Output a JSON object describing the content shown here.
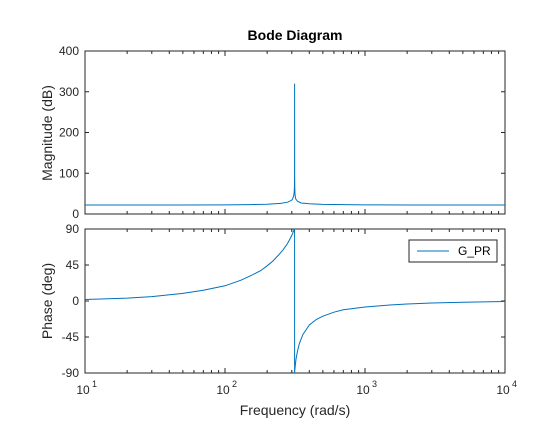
{
  "chart_data": {
    "type": "line",
    "title": "Bode Diagram",
    "xlabel": "Frequency  (rad/s)",
    "xscale": "log",
    "xlim": [
      10,
      10000
    ],
    "x_tick_labels": [
      {
        "value": 10,
        "base": "10",
        "exp": "1"
      },
      {
        "value": 100,
        "base": "10",
        "exp": "2"
      },
      {
        "value": 1000,
        "base": "10",
        "exp": "3"
      },
      {
        "value": 10000,
        "base": "10",
        "exp": "4"
      }
    ],
    "grid": false,
    "series_color": "#0072BD",
    "subplots": [
      {
        "id": "magnitude",
        "ylabel": "Magnitude (dB)",
        "ylim": [
          0,
          400
        ],
        "yticks": [
          0,
          100,
          200,
          300,
          400
        ],
        "series": [
          {
            "x": [
              10,
              20,
              50,
              100,
              150,
              200,
              250,
              280,
              300,
              305,
              310,
              312,
              313,
              313.5,
              314,
              314.2,
              314.5,
              315,
              316,
              318,
              320,
              330,
              350,
              400,
              500,
              1000,
              2000,
              5000,
              10000
            ],
            "values": [
              22,
              22,
              22,
              22.5,
              23,
              24,
              26,
              29,
              34,
              38,
              46,
              54,
              62,
              70,
              95,
              320,
              90,
              66,
              50,
              42,
              37,
              31,
              27,
              25,
              23.5,
              22.5,
              22,
              22,
              22
            ]
          }
        ]
      },
      {
        "id": "phase",
        "ylabel": "Phase (deg)",
        "ylim": [
          -90,
          90
        ],
        "yticks": [
          -90,
          -45,
          0,
          45,
          90
        ],
        "legend": {
          "location": "top-right",
          "entries": [
            "G_PR"
          ]
        },
        "series": [
          {
            "name": "G_PR",
            "x": [
              10,
              20,
              30,
              50,
              70,
              100,
              130,
              150,
              180,
              200,
              220,
              240,
              260,
              280,
              290,
              300,
              305,
              310,
              313,
              314.1,
              314.2,
              315,
              318,
              322,
              330,
              340,
              360,
              400,
              450,
              500,
              600,
              700,
              1000,
              1500,
              2000,
              3000,
              5000,
              10000
            ],
            "values": [
              1.8,
              3.6,
              5.5,
              9.5,
              13.5,
              19,
              26,
              31,
              38,
              44,
              50,
              57,
              64,
              72,
              77,
              82,
              85,
              88,
              89.5,
              90,
              -90,
              -87,
              -80,
              -72,
              -62,
              -53,
              -42,
              -30,
              -23,
              -19,
              -14,
              -11,
              -7.5,
              -5,
              -3.7,
              -2.5,
              -1.5,
              -0.7
            ]
          }
        ]
      }
    ]
  }
}
